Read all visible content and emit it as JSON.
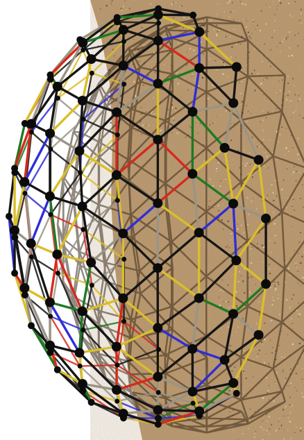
{
  "image": {
    "subject": "geodesic-dome-frame",
    "background_color": "#ffffff",
    "surface_color": "#b8956a",
    "surface_speckle_colors": [
      "#8a6a45",
      "#d8bc8e",
      "#6e5235",
      "#e6cfa4"
    ],
    "strut_colors": {
      "black": "#151515",
      "yellow": "#d9be2a",
      "red": "#d42a1e",
      "blue": "#2e2ed6",
      "green": "#1d7a22",
      "gray": "#9a9486"
    },
    "hub_color": "#0b0b0b",
    "shadow_color": "#3a2a18"
  }
}
